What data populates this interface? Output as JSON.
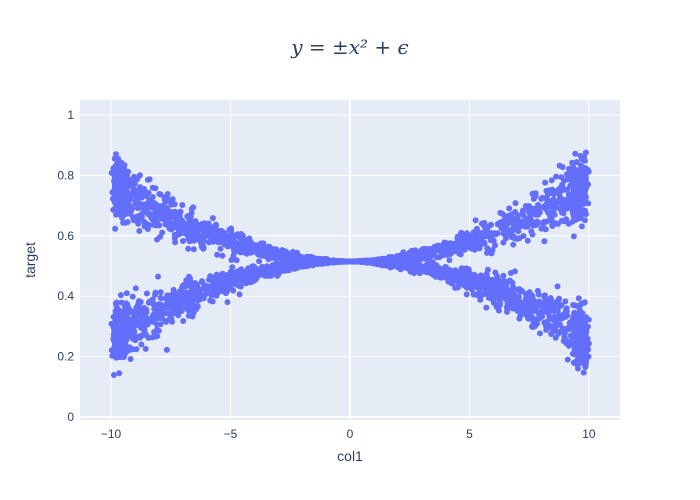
{
  "chart_data": {
    "type": "scatter",
    "title": "y = ±x² + ϵ",
    "xlabel": "col1",
    "ylabel": "target",
    "xlim": [
      -11.3,
      11.3
    ],
    "ylim": [
      -0.01,
      1.05
    ],
    "x_ticks": [
      -10,
      -5,
      0,
      5,
      10
    ],
    "x_tick_labels": [
      "−10",
      "−5",
      "0",
      "5",
      "10"
    ],
    "y_ticks": [
      0,
      0.2,
      0.4,
      0.6,
      0.8,
      1
    ],
    "y_tick_labels": [
      "0",
      "0.2",
      "0.4",
      "0.6",
      "0.8",
      "1"
    ],
    "grid": true,
    "legend": "none",
    "series": [
      {
        "x_range": [
          -10,
          10
        ],
        "y_center": 0.515,
        "upper_branch": "y ≈ 0.515 + 0.0026·x²",
        "lower_branch": "y ≈ 0.515 − 0.0026·x²",
        "noise_spread_at_edges": 0.12,
        "color": "#636efa"
      }
    ],
    "plot_bg": "#e5ecf6",
    "grid_color": "#ffffff",
    "text_color": "#2a3f5f"
  }
}
